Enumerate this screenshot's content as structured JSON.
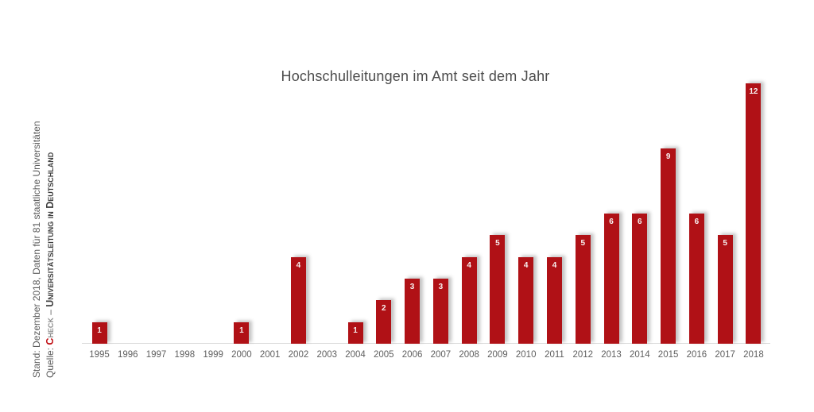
{
  "title": "Hochschulleitungen im Amt seit dem Jahr",
  "side_note": {
    "stand_line": "Stand: Dezember 2018, Daten für 81 staatliche Universitäten",
    "quelle_label": "Quelle: ",
    "brand": "Check",
    "separator": " – ",
    "source": "Universitätsleitung in Deutschland"
  },
  "chart_data": {
    "type": "bar",
    "title": "Hochschulleitungen im Amt seit dem Jahr",
    "categories": [
      "1995",
      "1996",
      "1997",
      "1998",
      "1999",
      "2000",
      "2001",
      "2002",
      "2003",
      "2004",
      "2005",
      "2006",
      "2007",
      "2008",
      "2009",
      "2010",
      "2011",
      "2012",
      "2013",
      "2014",
      "2015",
      "2016",
      "2017",
      "2018"
    ],
    "values": [
      1,
      0,
      0,
      0,
      0,
      1,
      0,
      4,
      0,
      1,
      2,
      3,
      3,
      4,
      5,
      4,
      4,
      5,
      6,
      6,
      9,
      6,
      5,
      12
    ],
    "xlabel": "",
    "ylabel": "",
    "ylim": [
      0,
      12
    ],
    "grid": false,
    "legend": "none",
    "bar_color": "#b01116",
    "value_label_color": "#f7f2f1",
    "value_labels": "shown on bars, hidden for zero values"
  },
  "colors": {
    "bar_red": "#b01116",
    "brand_initial_red": "#c00d12",
    "title_gray": "#4c4c4c",
    "tick_gray": "#5f5f5f",
    "axis_line_gray": "#d9d9d9",
    "background": "#ffffff"
  }
}
